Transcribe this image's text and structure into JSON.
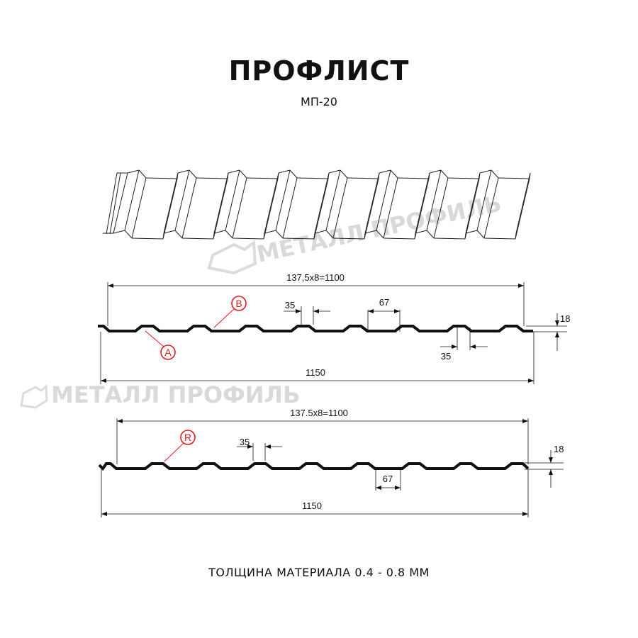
{
  "header": {
    "title": "ПРОФЛИСТ",
    "subtitle": "МП-20"
  },
  "watermark": {
    "text": "МЕТАЛЛ ПРОФИЛЬ"
  },
  "profile_a": {
    "pitch_dim": "137,5x8=1100",
    "width_dim": "1150",
    "height_dim": "18",
    "top_width_dim": "35",
    "bottom_width_dim": "35",
    "valley_dim": "67",
    "markers": [
      "A",
      "B"
    ]
  },
  "profile_r": {
    "pitch_dim": "137.5x8=1100",
    "width_dim": "1150",
    "height_dim": "18",
    "top_width_dim": "35",
    "valley_dim": "67",
    "markers": [
      "R"
    ]
  },
  "colors": {
    "line": "#111111",
    "marker": "#e8181e",
    "watermark": "#d9d9d9"
  },
  "footer": {
    "text": "ТОЛЩИНА МАТЕРИАЛА 0.4 - 0.8 ММ"
  }
}
